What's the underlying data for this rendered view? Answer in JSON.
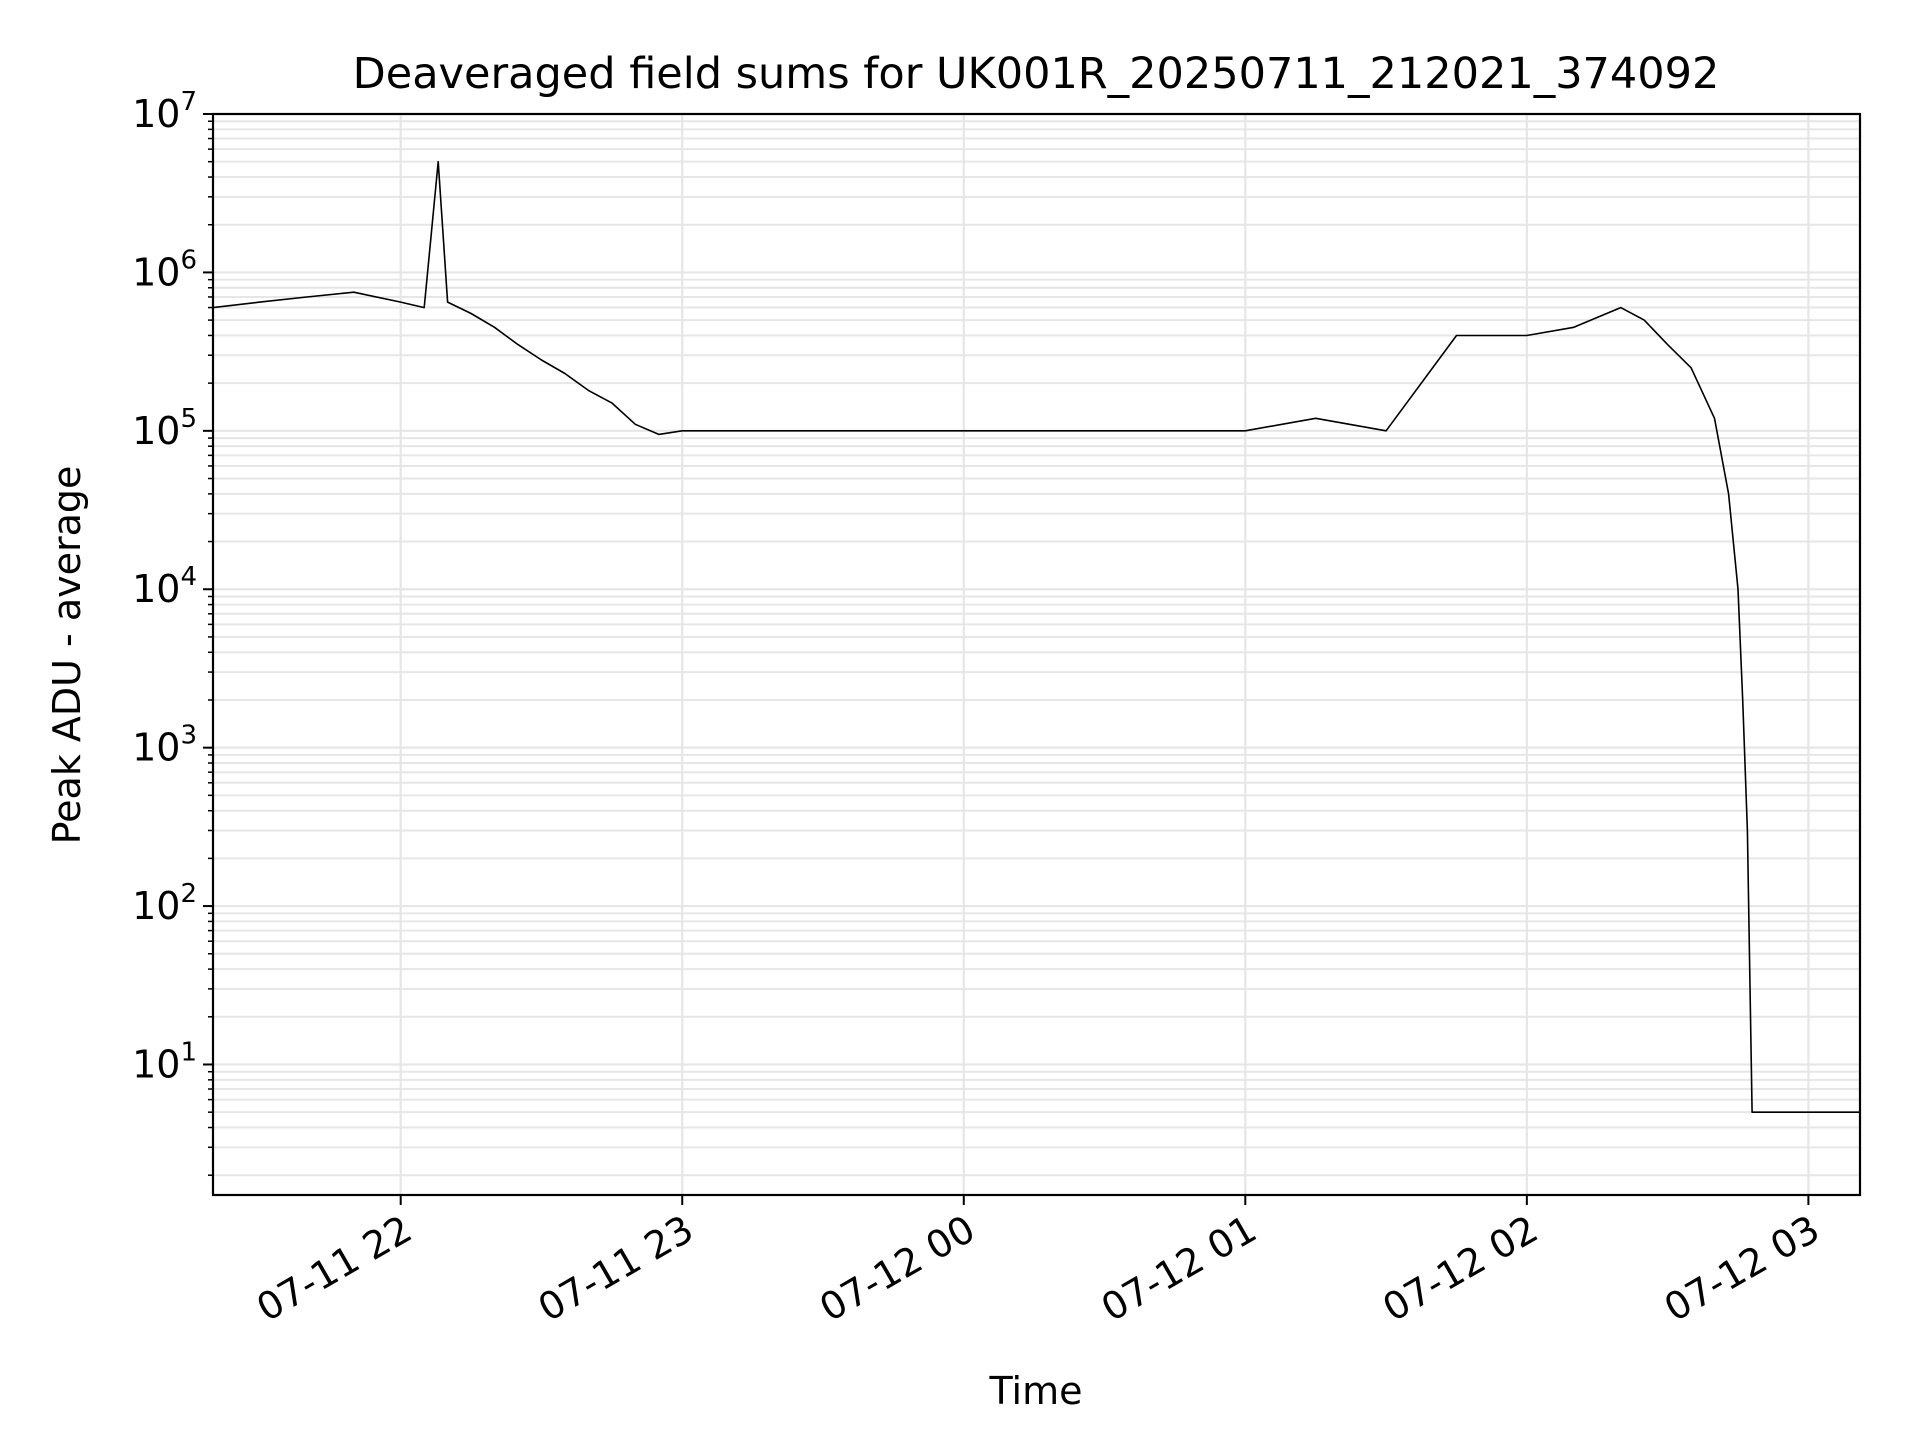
{
  "chart_data": {
    "type": "line",
    "title": "Deaveraged field sums for UK001R_20250711_212021_374092",
    "xlabel": "Time",
    "ylabel": "Peak ADU - average",
    "yscale": "log",
    "ylim": [
      1.5,
      10000000
    ],
    "xlim": [
      "2025-07-11 21:20",
      "2025-07-12 03:11"
    ],
    "grid": true,
    "x_tick_labels": [
      "07-11 22",
      "07-11 23",
      "07-12 00",
      "07-12 01",
      "07-12 02",
      "07-12 03"
    ],
    "x_ticks": [
      "2025-07-11 22:00",
      "2025-07-11 23:00",
      "2025-07-12 00:00",
      "2025-07-12 01:00",
      "2025-07-12 02:00",
      "2025-07-12 03:00"
    ],
    "y_ticks": [
      {
        "base": "10",
        "exp": "1",
        "value": 10
      },
      {
        "base": "10",
        "exp": "2",
        "value": 100
      },
      {
        "base": "10",
        "exp": "3",
        "value": 1000
      },
      {
        "base": "10",
        "exp": "4",
        "value": 10000
      },
      {
        "base": "10",
        "exp": "5",
        "value": 100000
      },
      {
        "base": "10",
        "exp": "6",
        "value": 1000000
      },
      {
        "base": "10",
        "exp": "7",
        "value": 10000000
      }
    ],
    "series": [
      {
        "color": "#000000",
        "x": [
          "2025-07-11 21:20",
          "2025-07-11 21:30",
          "2025-07-11 21:40",
          "2025-07-11 21:50",
          "2025-07-11 22:00",
          "2025-07-11 22:05",
          "2025-07-11 22:08",
          "2025-07-11 22:10",
          "2025-07-11 22:15",
          "2025-07-11 22:20",
          "2025-07-11 22:25",
          "2025-07-11 22:30",
          "2025-07-11 22:35",
          "2025-07-11 22:40",
          "2025-07-11 22:45",
          "2025-07-11 22:50",
          "2025-07-11 22:55",
          "2025-07-11 23:00",
          "2025-07-11 23:10",
          "2025-07-11 23:20",
          "2025-07-11 23:30",
          "2025-07-11 23:40",
          "2025-07-11 23:50",
          "2025-07-12 00:00",
          "2025-07-12 00:15",
          "2025-07-12 00:30",
          "2025-07-12 00:45",
          "2025-07-12 01:00",
          "2025-07-12 01:15",
          "2025-07-12 01:30",
          "2025-07-12 01:45",
          "2025-07-12 02:00",
          "2025-07-12 02:10",
          "2025-07-12 02:20",
          "2025-07-12 02:25",
          "2025-07-12 02:30",
          "2025-07-12 02:35",
          "2025-07-12 02:40",
          "2025-07-12 02:43",
          "2025-07-12 02:45",
          "2025-07-12 02:46",
          "2025-07-12 02:47",
          "2025-07-12 02:48",
          "2025-07-12 02:50",
          "2025-07-12 02:55",
          "2025-07-12 03:00",
          "2025-07-12 03:05",
          "2025-07-12 03:11"
        ],
        "values": [
          600000,
          650000,
          700000,
          750000,
          650000,
          600000,
          5000000,
          650000,
          550000,
          450000,
          350000,
          280000,
          230000,
          180000,
          150000,
          110000,
          95000,
          100000,
          100000,
          100000,
          100000,
          100000,
          100000,
          100000,
          100000,
          100000,
          100000,
          100000,
          120000,
          100000,
          400000,
          400000,
          450000,
          600000,
          500000,
          350000,
          250000,
          120000,
          40000,
          10000,
          2000,
          300,
          5,
          5,
          5,
          5,
          5,
          5
        ]
      }
    ]
  }
}
